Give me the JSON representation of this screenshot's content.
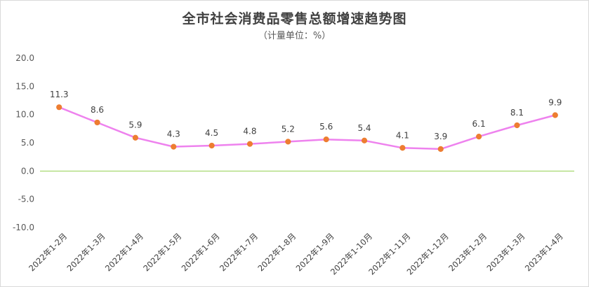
{
  "chart_data": {
    "type": "line",
    "title": "全市社会消费品零售总额增速趋势图",
    "subtitle": "（计量单位：%）",
    "categories": [
      "2022年1-2月",
      "2022年1-3月",
      "2022年1-4月",
      "2022年1-5月",
      "2022年1-6月",
      "2022年1-7月",
      "2022年1-8月",
      "2022年1-9月",
      "2022年1-10月",
      "2022年1-11月",
      "2022年1-12月",
      "2023年1-2月",
      "2023年1-3月",
      "2023年1-4月"
    ],
    "series": [
      {
        "values": [
          11.3,
          8.6,
          5.9,
          4.3,
          4.5,
          4.8,
          5.2,
          5.6,
          5.4,
          4.1,
          3.9,
          6.1,
          8.1,
          9.9
        ]
      }
    ],
    "y_ticks": [
      "20.0",
      "15.0",
      "10.0",
      "5.0",
      "0.0",
      "-5.0",
      "-10.0"
    ],
    "ylim": [
      -10,
      20
    ],
    "grid": false,
    "legend": "none",
    "colors": {
      "line": "#ee82ee",
      "marker": "#ed7d31",
      "zero_line": "#92d050"
    }
  }
}
